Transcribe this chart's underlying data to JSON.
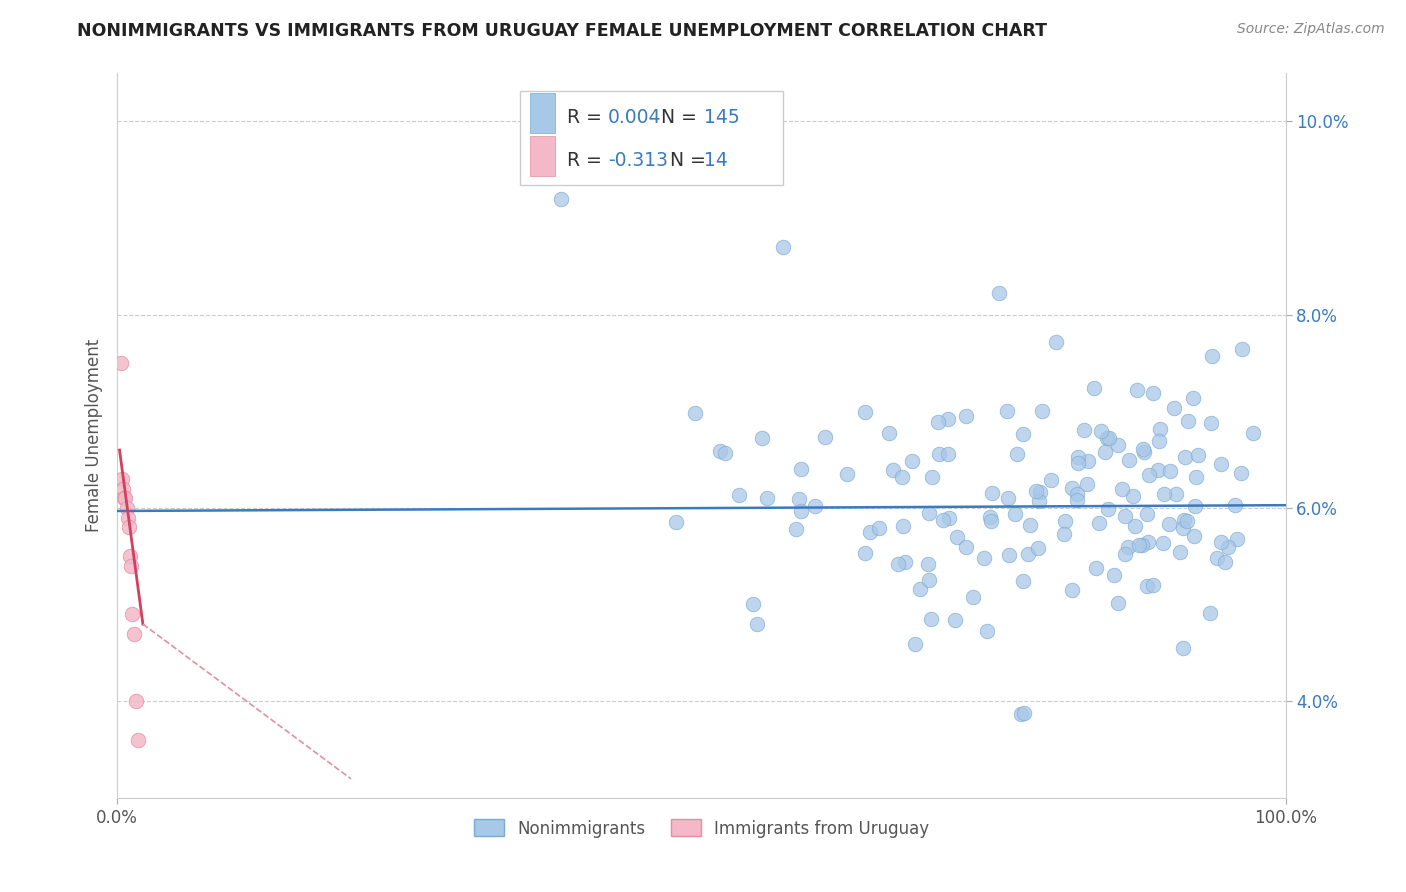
{
  "title": "NONIMMIGRANTS VS IMMIGRANTS FROM URUGUAY FEMALE UNEMPLOYMENT CORRELATION CHART",
  "source": "Source: ZipAtlas.com",
  "ylabel": "Female Unemployment",
  "legend_labels": [
    "Nonimmigrants",
    "Immigrants from Uruguay"
  ],
  "series1_color": "#A8C8E8",
  "series1_edge": "#7AAAD0",
  "series2_color": "#F4B8C8",
  "series2_edge": "#E090A0",
  "trend1_color": "#3A7ABF",
  "trend2_solid_color": "#D04060",
  "trend2_dashed_color": "#E090A0",
  "xlim": [
    0.0,
    1.0
  ],
  "ylim": [
    3.0,
    10.5
  ],
  "yticks": [
    4.0,
    6.0,
    8.0,
    10.0
  ],
  "ytick_labels": [
    "4.0%",
    "6.0%",
    "8.0%",
    "10.0%"
  ],
  "xticks": [
    0.0,
    1.0
  ],
  "xtick_labels": [
    "0.0%",
    "100.0%"
  ],
  "grid_color": "#CCCCCC",
  "background_color": "#FFFFFF",
  "title_color": "#222222",
  "legend_value_color": "#3A7ABF",
  "source_color": "#888888",
  "R1": "0.004",
  "N1": "145",
  "R2": "-0.313",
  "N2": "14"
}
